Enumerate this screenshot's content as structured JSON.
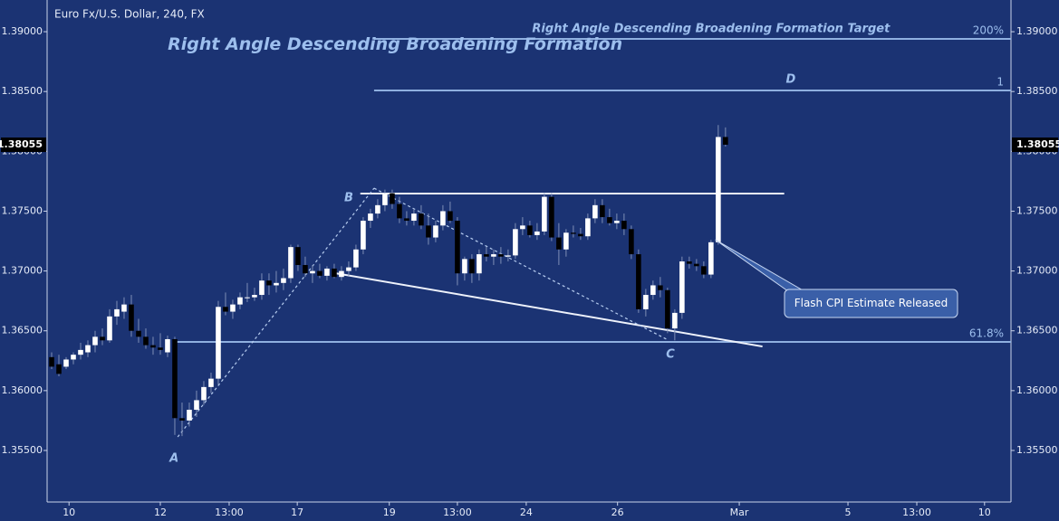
{
  "chart_data": {
    "type": "candlestick",
    "title": "Euro Fx/U.S. Dollar, 240, FX",
    "up_color": "#ffffff",
    "down_color": "#000000",
    "open": [
      1.3628,
      1.3622,
      1.362,
      1.3626,
      1.363,
      1.3632,
      1.3638,
      1.3645,
      1.3642,
      1.3662,
      1.3666,
      1.3672,
      1.365,
      1.3645,
      1.3638,
      1.3636,
      1.3632,
      1.3643,
      1.3577,
      1.3575,
      1.3584,
      1.3592,
      1.3603,
      1.361,
      1.367,
      1.3666,
      1.3672,
      1.3678,
      1.3678,
      1.368,
      1.3692,
      1.3688,
      1.369,
      1.3694,
      1.372,
      1.3705,
      1.3698,
      1.37,
      1.3696,
      1.3702,
      1.3695,
      1.37,
      1.3703,
      1.3718,
      1.3742,
      1.3748,
      1.3755,
      1.3765,
      1.3756,
      1.3744,
      1.3742,
      1.3748,
      1.3738,
      1.3728,
      1.3738,
      1.375,
      1.3742,
      1.3698,
      1.371,
      1.3698,
      1.3714,
      1.3712,
      1.3714,
      1.3712,
      1.3713,
      1.3735,
      1.3738,
      1.373,
      1.3733,
      1.3762,
      1.3728,
      1.3718,
      1.3732,
      1.3731,
      1.3729,
      1.3744,
      1.3755,
      1.3745,
      1.374,
      1.3742,
      1.3735,
      1.3714,
      1.3668,
      1.368,
      1.3688,
      1.3684,
      1.3652,
      1.3665,
      1.3708,
      1.3706,
      1.3704,
      1.3697,
      1.3724,
      1.3812
    ],
    "high": [
      1.3632,
      1.363,
      1.3628,
      1.3632,
      1.364,
      1.3642,
      1.365,
      1.3652,
      1.3668,
      1.3675,
      1.3678,
      1.368,
      1.366,
      1.3652,
      1.3645,
      1.3648,
      1.3646,
      1.3645,
      1.359,
      1.359,
      1.36,
      1.3608,
      1.3615,
      1.3675,
      1.3682,
      1.3676,
      1.3682,
      1.369,
      1.3686,
      1.3698,
      1.3698,
      1.37,
      1.3702,
      1.3722,
      1.3722,
      1.3712,
      1.3705,
      1.3706,
      1.3704,
      1.3706,
      1.3704,
      1.3708,
      1.3722,
      1.3745,
      1.3752,
      1.376,
      1.3768,
      1.3768,
      1.3762,
      1.375,
      1.3752,
      1.3755,
      1.3748,
      1.3742,
      1.3755,
      1.3758,
      1.3745,
      1.3712,
      1.3714,
      1.3718,
      1.372,
      1.3718,
      1.372,
      1.3718,
      1.374,
      1.3745,
      1.3742,
      1.374,
      1.3765,
      1.3765,
      1.374,
      1.3735,
      1.3738,
      1.3736,
      1.3748,
      1.376,
      1.376,
      1.3752,
      1.3748,
      1.3748,
      1.3738,
      1.3718,
      1.3685,
      1.3692,
      1.3695,
      1.3686,
      1.3668,
      1.3712,
      1.3712,
      1.371,
      1.3708,
      1.3726,
      1.3822,
      1.382
    ],
    "low": [
      1.3618,
      1.3612,
      1.3618,
      1.3622,
      1.3626,
      1.3628,
      1.3632,
      1.3638,
      1.364,
      1.3655,
      1.366,
      1.3645,
      1.364,
      1.3635,
      1.363,
      1.363,
      1.3628,
      1.3563,
      1.3562,
      1.357,
      1.3578,
      1.3588,
      1.3598,
      1.3605,
      1.3663,
      1.366,
      1.3668,
      1.3674,
      1.3675,
      1.3676,
      1.368,
      1.3682,
      1.3684,
      1.369,
      1.37,
      1.3695,
      1.369,
      1.3694,
      1.3692,
      1.3694,
      1.3692,
      1.3696,
      1.37,
      1.3714,
      1.3736,
      1.3744,
      1.375,
      1.3752,
      1.374,
      1.3738,
      1.3738,
      1.3735,
      1.3722,
      1.3724,
      1.3734,
      1.374,
      1.3688,
      1.3692,
      1.369,
      1.3692,
      1.3708,
      1.3705,
      1.3706,
      1.3708,
      1.371,
      1.373,
      1.3728,
      1.3726,
      1.373,
      1.3725,
      1.3705,
      1.3712,
      1.3728,
      1.3726,
      1.3726,
      1.374,
      1.374,
      1.3738,
      1.3735,
      1.373,
      1.371,
      1.3665,
      1.3662,
      1.3676,
      1.3678,
      1.3648,
      1.3642,
      1.366,
      1.3702,
      1.37,
      1.3694,
      1.3694,
      1.3722,
      1.3804
    ],
    "close": [
      1.362,
      1.3614,
      1.3626,
      1.363,
      1.3634,
      1.3638,
      1.3645,
      1.3642,
      1.3662,
      1.3668,
      1.3672,
      1.365,
      1.3645,
      1.3638,
      1.3636,
      1.3634,
      1.3643,
      1.3577,
      1.3575,
      1.3584,
      1.3592,
      1.3603,
      1.361,
      1.367,
      1.3666,
      1.3672,
      1.3678,
      1.3678,
      1.368,
      1.3692,
      1.3688,
      1.369,
      1.3694,
      1.372,
      1.3705,
      1.3698,
      1.37,
      1.3696,
      1.3702,
      1.3695,
      1.37,
      1.3703,
      1.3718,
      1.3742,
      1.3748,
      1.3755,
      1.3765,
      1.3756,
      1.3744,
      1.3742,
      1.3748,
      1.3738,
      1.3728,
      1.3738,
      1.375,
      1.3742,
      1.3698,
      1.371,
      1.3698,
      1.3714,
      1.3712,
      1.3714,
      1.3712,
      1.3713,
      1.3735,
      1.3738,
      1.373,
      1.3733,
      1.3762,
      1.3728,
      1.3718,
      1.3732,
      1.3731,
      1.3729,
      1.3744,
      1.3755,
      1.3745,
      1.374,
      1.3742,
      1.3735,
      1.3714,
      1.3668,
      1.368,
      1.3688,
      1.3684,
      1.3652,
      1.3665,
      1.3708,
      1.3706,
      1.3704,
      1.3697,
      1.3724,
      1.3812,
      1.38055
    ],
    "last_price": 1.38055,
    "xlim": [
      -0.625,
      132.4
    ],
    "ylim": [
      1.35069,
      1.39265
    ],
    "xticks": [
      {
        "value": 2.4,
        "label": "10"
      },
      {
        "value": 15,
        "label": "12"
      },
      {
        "value": 24.5,
        "label": "13:00"
      },
      {
        "value": 33.9,
        "label": "17"
      },
      {
        "value": 46.6,
        "label": "19"
      },
      {
        "value": 56,
        "label": "13:00"
      },
      {
        "value": 65.5,
        "label": "24"
      },
      {
        "value": 78.1,
        "label": "26"
      },
      {
        "value": 94.9,
        "label": "Mar"
      },
      {
        "value": 109.9,
        "label": "5"
      },
      {
        "value": 119.4,
        "label": "13:00"
      },
      {
        "value": 128.75,
        "label": "10"
      }
    ],
    "yticks": [
      {
        "value": 1.355,
        "label": "1.35500"
      },
      {
        "value": 1.36,
        "label": "1.36000"
      },
      {
        "value": 1.365,
        "label": "1.36500"
      },
      {
        "value": 1.37,
        "label": "1.37000"
      },
      {
        "value": 1.375,
        "label": "1.37500"
      },
      {
        "value": 1.38,
        "label": "1.38000"
      },
      {
        "value": 1.385,
        "label": "1.38500"
      },
      {
        "value": 1.39,
        "label": "1.39000"
      }
    ],
    "levels": [
      {
        "label": "200%",
        "value": 1.3894,
        "x_start": 44.5
      },
      {
        "label": "1",
        "value": 1.38509,
        "x_start": 44.5
      },
      {
        "label": "61.8%",
        "value": 1.36407,
        "x_start": 17.25
      }
    ],
    "trendlines": [
      {
        "x": [
          42.6,
          101.1
        ],
        "y": [
          1.37647,
          1.37647
        ],
        "dashed": false
      },
      {
        "x": [
          39.1,
          98.1
        ],
        "y": [
          1.36982,
          1.36369
        ],
        "dashed": false
      },
      {
        "x": [
          17.4,
          44.5
        ],
        "y": [
          1.35613,
          1.37692
        ],
        "dashed": true
      },
      {
        "x": [
          44.5,
          85.1
        ],
        "y": [
          1.37692,
          1.36422
        ],
        "dashed": true
      }
    ],
    "annotations": [
      {
        "text": "Right Angle Descending Broadening Formation",
        "x": 47.4,
        "y": 1.38889,
        "size": "large"
      },
      {
        "text": "Right Angle Descending Broadening Formation Target",
        "x": 91,
        "y": 1.39023,
        "size": "medium"
      },
      {
        "text": "A",
        "x": 16.9,
        "y": 1.35432,
        "size": "medium"
      },
      {
        "text": "B",
        "x": 41,
        "y": 1.37609,
        "size": "medium"
      },
      {
        "text": "C",
        "x": 85.4,
        "y": 1.36301,
        "size": "medium"
      },
      {
        "text": "D",
        "x": 102,
        "y": 1.38599,
        "size": "medium"
      }
    ],
    "callout": {
      "text": "Flash CPI Estimate Released",
      "x": 91.6,
      "y": 1.37261
    }
  }
}
